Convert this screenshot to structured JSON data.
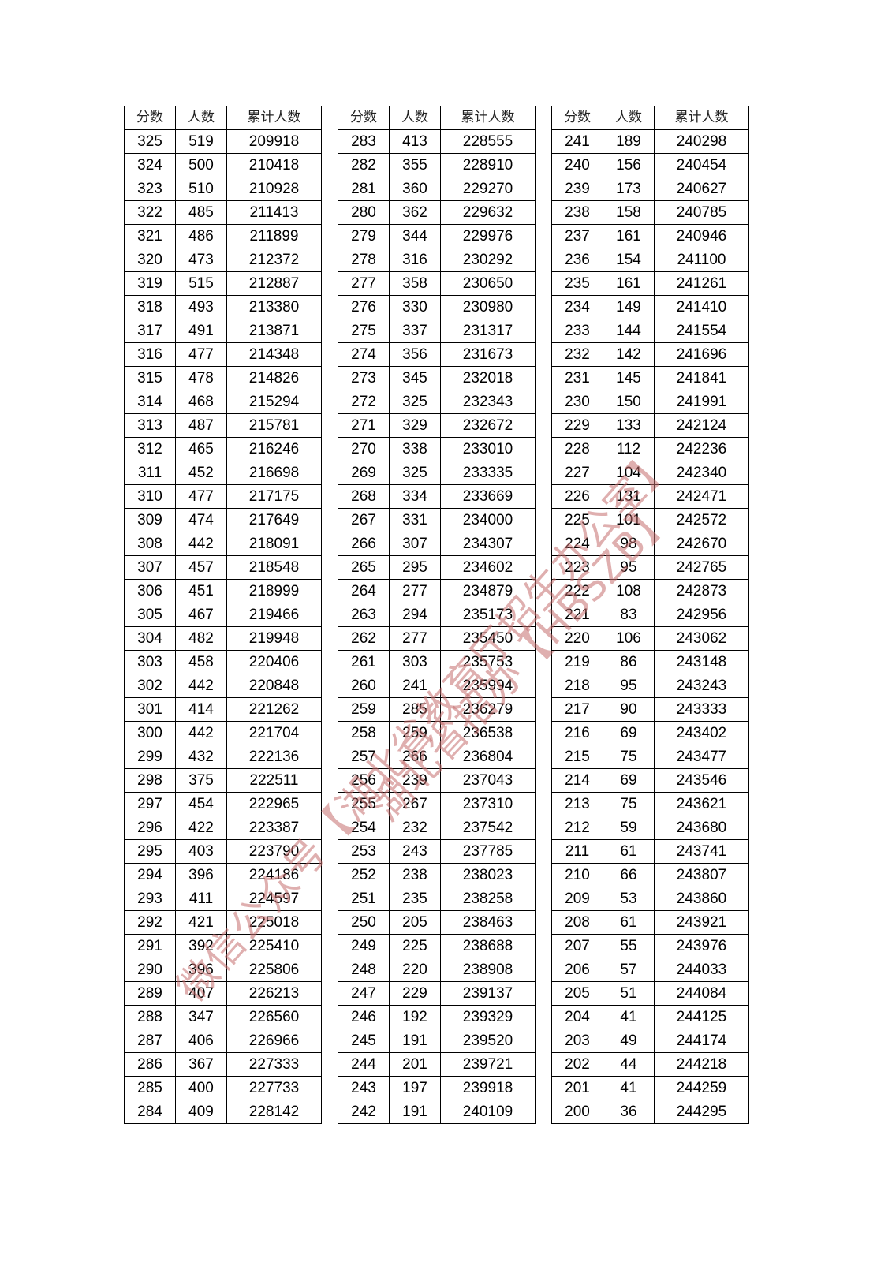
{
  "headers": [
    "分数",
    "人数",
    "累计人数"
  ],
  "tables": [
    [
      [
        325,
        519,
        209918
      ],
      [
        324,
        500,
        210418
      ],
      [
        323,
        510,
        210928
      ],
      [
        322,
        485,
        211413
      ],
      [
        321,
        486,
        211899
      ],
      [
        320,
        473,
        212372
      ],
      [
        319,
        515,
        212887
      ],
      [
        318,
        493,
        213380
      ],
      [
        317,
        491,
        213871
      ],
      [
        316,
        477,
        214348
      ],
      [
        315,
        478,
        214826
      ],
      [
        314,
        468,
        215294
      ],
      [
        313,
        487,
        215781
      ],
      [
        312,
        465,
        216246
      ],
      [
        311,
        452,
        216698
      ],
      [
        310,
        477,
        217175
      ],
      [
        309,
        474,
        217649
      ],
      [
        308,
        442,
        218091
      ],
      [
        307,
        457,
        218548
      ],
      [
        306,
        451,
        218999
      ],
      [
        305,
        467,
        219466
      ],
      [
        304,
        482,
        219948
      ],
      [
        303,
        458,
        220406
      ],
      [
        302,
        442,
        220848
      ],
      [
        301,
        414,
        221262
      ],
      [
        300,
        442,
        221704
      ],
      [
        299,
        432,
        222136
      ],
      [
        298,
        375,
        222511
      ],
      [
        297,
        454,
        222965
      ],
      [
        296,
        422,
        223387
      ],
      [
        295,
        403,
        223790
      ],
      [
        294,
        396,
        224186
      ],
      [
        293,
        411,
        224597
      ],
      [
        292,
        421,
        225018
      ],
      [
        291,
        392,
        225410
      ],
      [
        290,
        396,
        225806
      ],
      [
        289,
        407,
        226213
      ],
      [
        288,
        347,
        226560
      ],
      [
        287,
        406,
        226966
      ],
      [
        286,
        367,
        227333
      ],
      [
        285,
        400,
        227733
      ],
      [
        284,
        409,
        228142
      ]
    ],
    [
      [
        283,
        413,
        228555
      ],
      [
        282,
        355,
        228910
      ],
      [
        281,
        360,
        229270
      ],
      [
        280,
        362,
        229632
      ],
      [
        279,
        344,
        229976
      ],
      [
        278,
        316,
        230292
      ],
      [
        277,
        358,
        230650
      ],
      [
        276,
        330,
        230980
      ],
      [
        275,
        337,
        231317
      ],
      [
        274,
        356,
        231673
      ],
      [
        273,
        345,
        232018
      ],
      [
        272,
        325,
        232343
      ],
      [
        271,
        329,
        232672
      ],
      [
        270,
        338,
        233010
      ],
      [
        269,
        325,
        233335
      ],
      [
        268,
        334,
        233669
      ],
      [
        267,
        331,
        234000
      ],
      [
        266,
        307,
        234307
      ],
      [
        265,
        295,
        234602
      ],
      [
        264,
        277,
        234879
      ],
      [
        263,
        294,
        235173
      ],
      [
        262,
        277,
        235450
      ],
      [
        261,
        303,
        235753
      ],
      [
        260,
        241,
        235994
      ],
      [
        259,
        285,
        236279
      ],
      [
        258,
        259,
        236538
      ],
      [
        257,
        266,
        236804
      ],
      [
        256,
        239,
        237043
      ],
      [
        255,
        267,
        237310
      ],
      [
        254,
        232,
        237542
      ],
      [
        253,
        243,
        237785
      ],
      [
        252,
        238,
        238023
      ],
      [
        251,
        235,
        238258
      ],
      [
        250,
        205,
        238463
      ],
      [
        249,
        225,
        238688
      ],
      [
        248,
        220,
        238908
      ],
      [
        247,
        229,
        239137
      ],
      [
        246,
        192,
        239329
      ],
      [
        245,
        191,
        239520
      ],
      [
        244,
        201,
        239721
      ],
      [
        243,
        197,
        239918
      ],
      [
        242,
        191,
        240109
      ]
    ],
    [
      [
        241,
        189,
        240298
      ],
      [
        240,
        156,
        240454
      ],
      [
        239,
        173,
        240627
      ],
      [
        238,
        158,
        240785
      ],
      [
        237,
        161,
        240946
      ],
      [
        236,
        154,
        241100
      ],
      [
        235,
        161,
        241261
      ],
      [
        234,
        149,
        241410
      ],
      [
        233,
        144,
        241554
      ],
      [
        232,
        142,
        241696
      ],
      [
        231,
        145,
        241841
      ],
      [
        230,
        150,
        241991
      ],
      [
        229,
        133,
        242124
      ],
      [
        228,
        112,
        242236
      ],
      [
        227,
        104,
        242340
      ],
      [
        226,
        131,
        242471
      ],
      [
        225,
        101,
        242572
      ],
      [
        224,
        98,
        242670
      ],
      [
        223,
        95,
        242765
      ],
      [
        222,
        108,
        242873
      ],
      [
        221,
        83,
        242956
      ],
      [
        220,
        106,
        243062
      ],
      [
        219,
        86,
        243148
      ],
      [
        218,
        95,
        243243
      ],
      [
        217,
        90,
        243333
      ],
      [
        216,
        69,
        243402
      ],
      [
        215,
        75,
        243477
      ],
      [
        214,
        69,
        243546
      ],
      [
        213,
        75,
        243621
      ],
      [
        212,
        59,
        243680
      ],
      [
        211,
        61,
        243741
      ],
      [
        210,
        66,
        243807
      ],
      [
        209,
        53,
        243860
      ],
      [
        208,
        61,
        243921
      ],
      [
        207,
        55,
        243976
      ],
      [
        206,
        57,
        244033
      ],
      [
        205,
        51,
        244084
      ],
      [
        204,
        41,
        244125
      ],
      [
        203,
        49,
        244174
      ],
      [
        202,
        44,
        244218
      ],
      [
        201,
        41,
        244259
      ],
      [
        200,
        36,
        244295
      ]
    ]
  ],
  "watermark": {
    "line1": "微信公众号【湖北省教育厅招生办公室】",
    "line2": "湖北省招办【HBSZB】",
    "color": "#c46e6e"
  }
}
